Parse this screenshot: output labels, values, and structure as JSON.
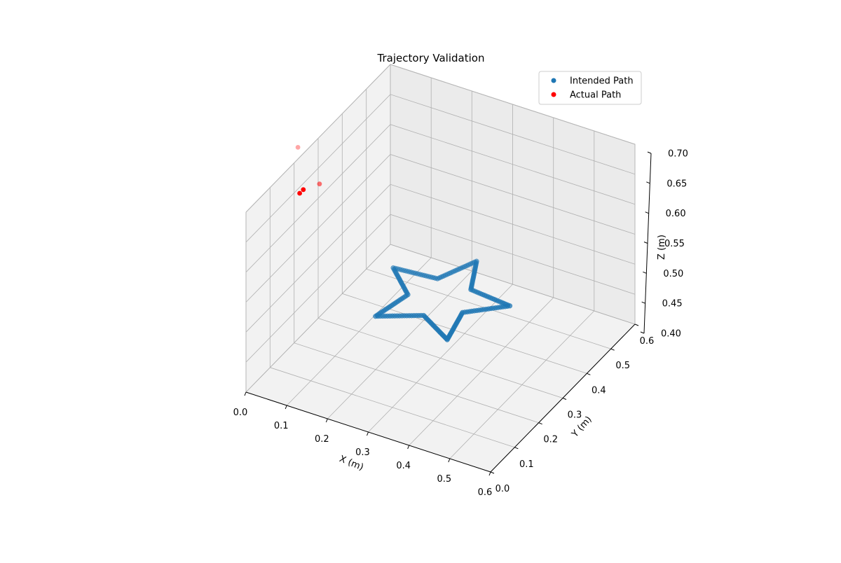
{
  "figure": {
    "title": "Trajectory Validation"
  },
  "legend": {
    "placement": "upper-right",
    "entries": [
      {
        "label": "Intended Path",
        "color": "#1f77b4"
      },
      {
        "label": "Actual Path",
        "color": "#ff0000"
      }
    ]
  },
  "axes": {
    "x": {
      "label": "X (m)",
      "ticks": [
        "0.0",
        "0.1",
        "0.2",
        "0.3",
        "0.4",
        "0.5",
        "0.6"
      ]
    },
    "y": {
      "label": "Y (m)",
      "ticks": [
        "0.0",
        "0.1",
        "0.2",
        "0.3",
        "0.4",
        "0.5",
        "0.6"
      ]
    },
    "z": {
      "label": "Z (m)",
      "ticks": [
        "0.40",
        "0.45",
        "0.50",
        "0.55",
        "0.60",
        "0.65",
        "0.70"
      ]
    }
  },
  "chart_data": {
    "type": "scatter",
    "projection": "3d",
    "title": "Trajectory Validation",
    "xlabel": "X (m)",
    "ylabel": "Y (m)",
    "zlabel": "Z (m)",
    "xlim": [
      0.0,
      0.6
    ],
    "ylim": [
      0.0,
      0.6
    ],
    "zlim": [
      0.4,
      0.7
    ],
    "grid": true,
    "legend": "upper-right",
    "series": [
      {
        "name": "Intended Path",
        "color": "#1f77b4",
        "shape": "five-pointed star polyline in the plane z = 0.5 m",
        "vertices": [
          {
            "x": 0.3,
            "y": 0.45,
            "z": 0.5
          },
          {
            "x": 0.341,
            "y": 0.357,
            "z": 0.5
          },
          {
            "x": 0.443,
            "y": 0.346,
            "z": 0.5
          },
          {
            "x": 0.367,
            "y": 0.278,
            "z": 0.5
          },
          {
            "x": 0.388,
            "y": 0.179,
            "z": 0.5
          },
          {
            "x": 0.3,
            "y": 0.23,
            "z": 0.5
          },
          {
            "x": 0.212,
            "y": 0.179,
            "z": 0.5
          },
          {
            "x": 0.233,
            "y": 0.278,
            "z": 0.5
          },
          {
            "x": 0.157,
            "y": 0.346,
            "z": 0.5
          },
          {
            "x": 0.259,
            "y": 0.357,
            "z": 0.5
          },
          {
            "x": 0.3,
            "y": 0.45,
            "z": 0.5
          }
        ],
        "points_per_edge": 20
      },
      {
        "name": "Actual Path",
        "color": "#ff0000",
        "points": [
          {
            "x": 0.066,
            "y": 0.104,
            "z": 0.78
          },
          {
            "x": 0.08,
            "y": 0.17,
            "z": 0.695
          },
          {
            "x": 0.022,
            "y": 0.201,
            "z": 0.66
          },
          {
            "x": 0.0,
            "y": 0.223,
            "z": 0.64
          }
        ]
      }
    ]
  }
}
